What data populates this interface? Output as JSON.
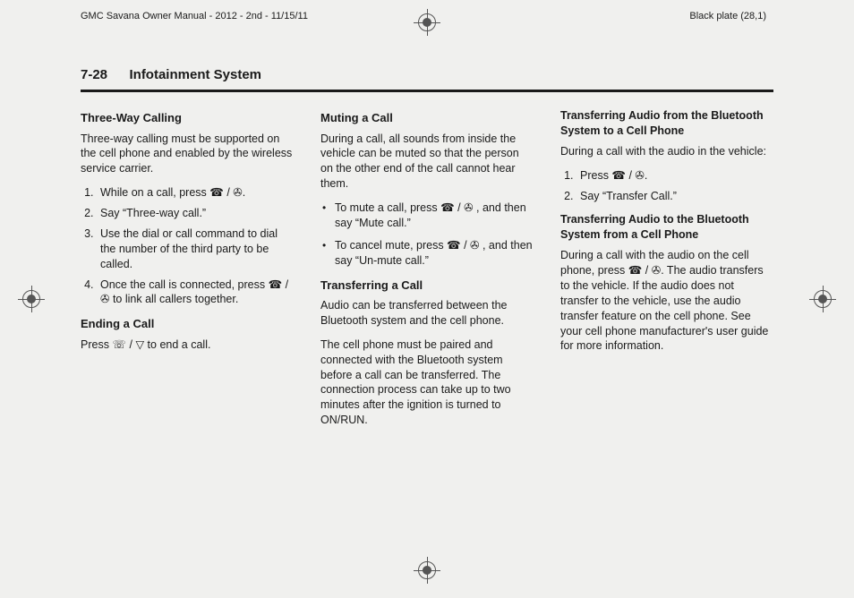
{
  "meta": {
    "doc_left": "GMC Savana Owner Manual - 2012 - 2nd - 11/15/11",
    "doc_right": "Black plate (28,1)"
  },
  "header": {
    "page_number": "7-28",
    "section": "Infotainment System"
  },
  "icons": {
    "phone_voice": "☎ / ✇",
    "hangup": "☏ / ▽"
  },
  "col1": {
    "h1": "Three-Way Calling",
    "p1": "Three-way calling must be supported on the cell phone and enabled by the wireless service carrier.",
    "steps": [
      "While on a call, press ☎ / ✇.",
      "Say “Three-way call.”",
      "Use the dial or call command to dial the number of the third party to be called.",
      "Once the call is connected, press ☎ / ✇ to link all callers together."
    ],
    "h2": "Ending a Call",
    "p2": "Press ☏ / ▽ to end a call."
  },
  "col2": {
    "h1": "Muting a Call",
    "p1": "During a call, all sounds from inside the vehicle can be muted so that the person on the other end of the call cannot hear them.",
    "bullets": [
      "To mute a call, press ☎ / ✇ , and then say “Mute call.”",
      "To cancel mute, press ☎ / ✇ , and then say “Un-mute call.”"
    ],
    "h2": "Transferring a Call",
    "p2": "Audio can be transferred between the Bluetooth system and the cell phone.",
    "p3": "The cell phone must be paired and connected with the Bluetooth system before a call can be transferred. The connection process can take up to two minutes after the ignition is turned to ON/RUN."
  },
  "col3": {
    "h1": "Transferring Audio from the Bluetooth System to a Cell Phone",
    "p1": "During a call with the audio in the vehicle:",
    "steps": [
      "Press ☎ / ✇.",
      "Say “Transfer Call.”"
    ],
    "h2": "Transferring Audio to the Bluetooth System from a Cell Phone",
    "p2": "During a call with the audio on the cell phone, press ☎ / ✇. The audio transfers to the vehicle. If the audio does not transfer to the vehicle, use the audio transfer feature on the cell phone. See your cell phone manufacturer's user guide for more information."
  }
}
